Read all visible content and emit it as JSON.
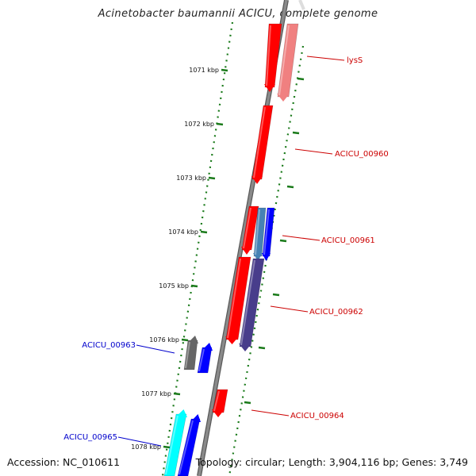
{
  "title": "Acinetobacter baumannii ACICU, complete genome",
  "footer": {
    "accession": "Accession: NC_010611",
    "summary": "Topology: circular; Length: 3,904,116 bp; Genes: 3,749"
  },
  "colors": {
    "backbone": "#8a8a8a",
    "ticks": "#1a7a1a",
    "forward_label": "#cc0000",
    "reverse_label": "#0000cc"
  },
  "ticks": [
    {
      "label": "1071 kbp"
    },
    {
      "label": "1072 kbp"
    },
    {
      "label": "1073 kbp"
    },
    {
      "label": "1074 kbp"
    },
    {
      "label": "1075 kbp"
    },
    {
      "label": "1076 kbp"
    },
    {
      "label": "1077 kbp"
    },
    {
      "label": "1078 kbp"
    }
  ],
  "gene_labels": [
    {
      "text": "lysS",
      "strand": "forward"
    },
    {
      "text": "ACICU_00960",
      "strand": "forward"
    },
    {
      "text": "ACICU_00961",
      "strand": "forward"
    },
    {
      "text": "ACICU_00962",
      "strand": "forward"
    },
    {
      "text": "ACICU_00963",
      "strand": "reverse"
    },
    {
      "text": "ACICU_00964",
      "strand": "forward"
    },
    {
      "text": "ACICU_00965",
      "strand": "reverse"
    }
  ],
  "genes": [
    {
      "color": "#ff0000",
      "strand": "forward",
      "lane": "inner"
    },
    {
      "color": "#f08080",
      "strand": "forward",
      "lane": "outer"
    },
    {
      "color": "#ff0000",
      "strand": "forward",
      "lane": "inner"
    },
    {
      "color": "#ff0000",
      "strand": "forward",
      "lane": "inner"
    },
    {
      "color": "#4682b4",
      "strand": "forward",
      "lane": "mid"
    },
    {
      "color": "#0000ff",
      "strand": "forward",
      "lane": "outer"
    },
    {
      "color": "#ff0000",
      "strand": "forward",
      "lane": "inner"
    },
    {
      "color": "#483d8b",
      "strand": "forward",
      "lane": "outer"
    },
    {
      "color": "#666666",
      "strand": "reverse",
      "lane": "inner"
    },
    {
      "color": "#0000ff",
      "strand": "reverse",
      "lane": "outer"
    },
    {
      "color": "#ff0000",
      "strand": "forward",
      "lane": "inner"
    },
    {
      "color": "#00ffff",
      "strand": "reverse",
      "lane": "inner"
    },
    {
      "color": "#0000ff",
      "strand": "reverse",
      "lane": "outer"
    }
  ]
}
